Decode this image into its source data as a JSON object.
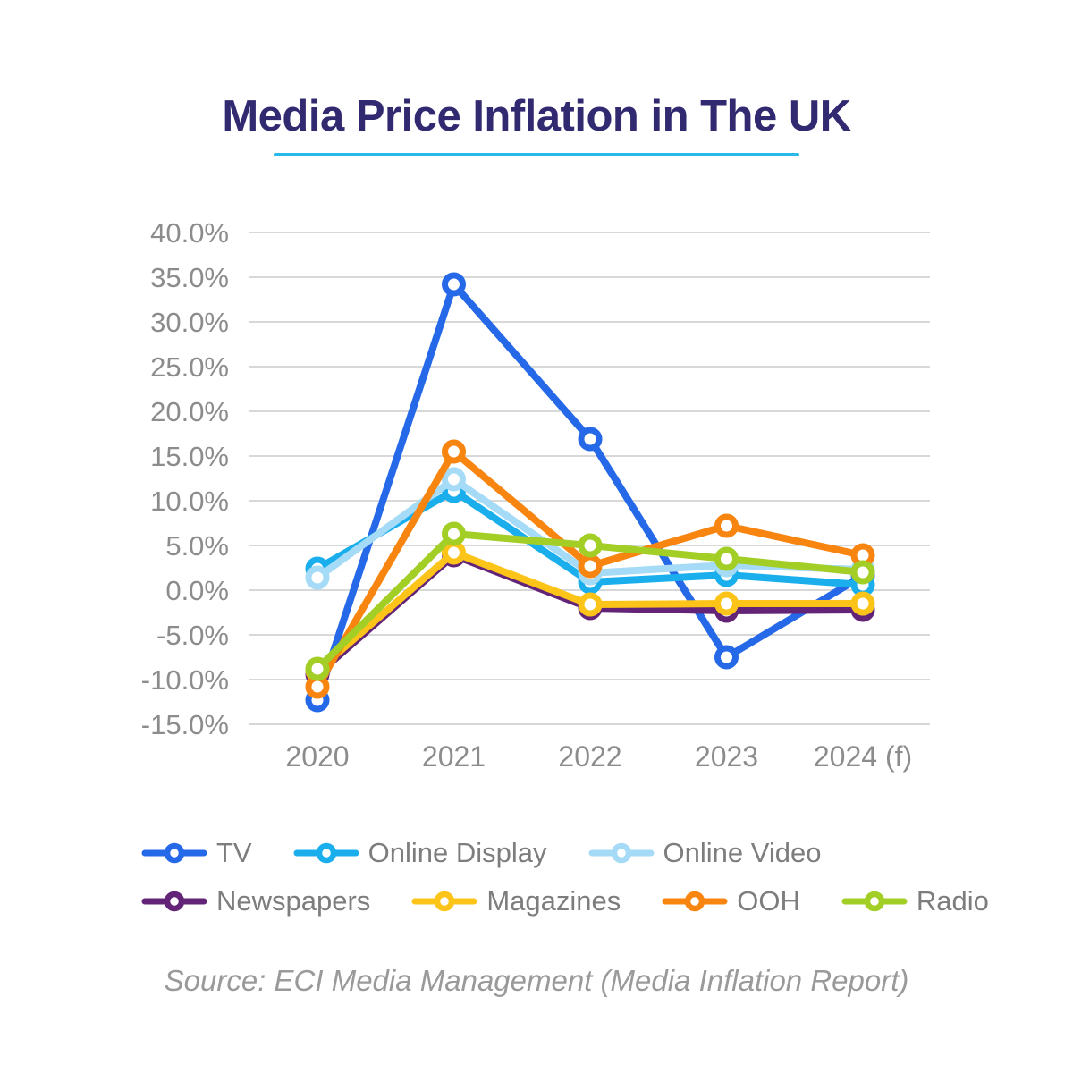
{
  "title": "Media Price Inflation in The UK",
  "source": "Source: ECI Media Management (Media Inflation Report)",
  "colors": {
    "background": "#ffffff",
    "title": "#322a70",
    "title_underline": "#29b9e8",
    "gridline": "#cccccc",
    "axis_label": "#8c8c8c",
    "legend_label": "#7d7d7d",
    "source_text": "#9a9a9a"
  },
  "chart_data": {
    "type": "line",
    "categories": [
      "2020",
      "2021",
      "2022",
      "2023",
      "2024 (f)"
    ],
    "series": [
      {
        "name": "TV",
        "color": "#2569e8",
        "values": [
          -12.3,
          34.2,
          16.9,
          -7.5,
          1.6
        ]
      },
      {
        "name": "Online Display",
        "color": "#1aafec",
        "values": [
          2.4,
          11.1,
          0.9,
          1.7,
          0.6
        ]
      },
      {
        "name": "Online Video",
        "color": "#a5dbf6",
        "values": [
          1.4,
          12.4,
          1.9,
          2.8,
          2.3
        ]
      },
      {
        "name": "Newspapers",
        "color": "#632478",
        "values": [
          -9.4,
          3.9,
          -2.0,
          -2.3,
          -2.2
        ]
      },
      {
        "name": "Magazines",
        "color": "#fcc419",
        "values": [
          -9.0,
          4.2,
          -1.6,
          -1.5,
          -1.5
        ]
      },
      {
        "name": "OOH",
        "color": "#f8850f",
        "values": [
          -10.8,
          15.5,
          2.7,
          7.2,
          3.9
        ]
      },
      {
        "name": "Radio",
        "color": "#a2ce26",
        "values": [
          -8.8,
          6.3,
          5.0,
          3.5,
          2.0
        ]
      }
    ],
    "ylim": [
      -15,
      40
    ],
    "ytick_step": 5,
    "ytick_format": "percent_one_decimal",
    "ytick_labels": [
      "40.0%",
      "35.0%",
      "30.0%",
      "25.0%",
      "20.0%",
      "15.0%",
      "10.0%",
      "5.0%",
      "0.0%",
      "-5.0%",
      "-10.0%",
      "-15.0%"
    ],
    "grid": "horizontal",
    "marker": "open-circle",
    "legend_position": "bottom",
    "legend_rows": [
      [
        0,
        1,
        2
      ],
      [
        3,
        4,
        5,
        6
      ]
    ]
  }
}
